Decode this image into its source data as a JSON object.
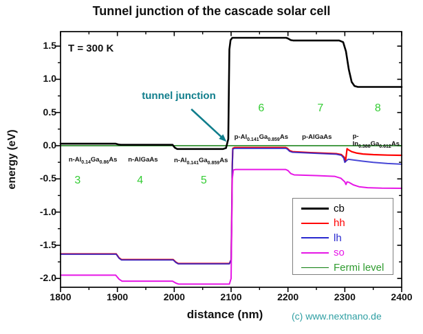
{
  "title": "Tunnel junction of the cascade solar cell",
  "temperature_label": "T = 300 K",
  "watermark": "(c) www.nextnano.de",
  "colors": {
    "teal": "#107e8c",
    "watermark_teal": "#2f9fa3",
    "region_green": "#33cc33",
    "frame": "#000000"
  },
  "axes": {
    "xlabel": "distance (nm)",
    "ylabel": "energy (eV)",
    "xticks": [
      1800,
      1900,
      2000,
      2100,
      2200,
      2300,
      2400
    ],
    "xminor": [
      1850,
      1950,
      2050,
      2150,
      2250,
      2350
    ],
    "yticks": [
      {
        "v": 1.5,
        "label": "1.5"
      },
      {
        "v": 1.0,
        "label": "1.0"
      },
      {
        "v": 0.5,
        "label": "0.5"
      },
      {
        "v": 0.0,
        "label": "0.0"
      },
      {
        "v": -0.5,
        "label": "-0.5"
      },
      {
        "v": -1.0,
        "label": "-1.0"
      },
      {
        "v": -1.5,
        "label": "-1.5"
      },
      {
        "v": -2.0,
        "label": "-2.0"
      }
    ],
    "yminor": [
      1.25,
      0.75,
      0.25,
      -0.25,
      -0.75,
      -1.25,
      -1.75
    ]
  },
  "annotations": {
    "tunnel_junction": {
      "text": "tunnel junction",
      "arrow": {
        "from_nm": 2030,
        "from_ev": 0.55,
        "to_nm": 2092,
        "to_ev": 0.06
      }
    },
    "regions": [
      {
        "label": "3",
        "x_nm": 1830,
        "y_ev": -0.57
      },
      {
        "label": "4",
        "x_nm": 1940,
        "y_ev": -0.57
      },
      {
        "label": "5",
        "x_nm": 2052,
        "y_ev": -0.57
      },
      {
        "label": "6",
        "x_nm": 2153,
        "y_ev": 0.52
      },
      {
        "label": "7",
        "x_nm": 2257,
        "y_ev": 0.52
      },
      {
        "label": "8",
        "x_nm": 2358,
        "y_ev": 0.52
      }
    ],
    "materials": [
      {
        "x_nm": 1857,
        "y_ev": -0.25,
        "parts": [
          {
            "t": "n-Al"
          },
          {
            "s": "0.14"
          },
          {
            "t": "Ga"
          },
          {
            "s": "0.86"
          },
          {
            "t": "As"
          }
        ]
      },
      {
        "x_nm": 1945,
        "y_ev": -0.25,
        "parts": [
          {
            "t": "n-AlGaAs"
          }
        ]
      },
      {
        "x_nm": 2047,
        "y_ev": -0.26,
        "parts": [
          {
            "t": "n-Al"
          },
          {
            "s": "0.141"
          },
          {
            "t": "Ga"
          },
          {
            "s": "0.859"
          },
          {
            "t": "As"
          }
        ]
      },
      {
        "x_nm": 2153,
        "y_ev": 0.09,
        "parts": [
          {
            "t": "p-Al"
          },
          {
            "s": "0.141"
          },
          {
            "t": "Ga"
          },
          {
            "s": "0.859"
          },
          {
            "t": "As"
          }
        ]
      },
      {
        "x_nm": 2251,
        "y_ev": 0.09,
        "parts": [
          {
            "t": "p-AlGaAs"
          }
        ]
      },
      {
        "x_nm": 2355,
        "y_ev": 0.1,
        "parts": [
          {
            "t": "p-In"
          },
          {
            "s": "0.388"
          },
          {
            "t": "Ga"
          },
          {
            "s": "0.612"
          },
          {
            "t": "As"
          }
        ]
      }
    ]
  },
  "legend": {
    "entries": [
      {
        "label": "cb",
        "color": "#000000",
        "label_color": "#000000",
        "line_width": 3
      },
      {
        "label": "hh",
        "color": "#ff0000",
        "label_color": "#ff0000",
        "line_width": 2.5
      },
      {
        "label": "lh",
        "color": "#2727cf",
        "label_color": "#2727cf",
        "line_width": 2
      },
      {
        "label": "so",
        "color": "#e616e6",
        "label_color": "#e616e6",
        "line_width": 2
      },
      {
        "label": "Fermi level",
        "color": "#0b7b0b",
        "label_color": "#2e9b2e",
        "line_width": 1.8
      }
    ]
  },
  "chart_data": {
    "type": "line",
    "title": "Tunnel junction of the cascade solar cell",
    "xlabel": "distance (nm)",
    "ylabel": "energy (eV)",
    "xlim": [
      1800,
      2400
    ],
    "ylim": [
      -2.13,
      1.72
    ],
    "grid": false,
    "legend_position": "lower-right-inside",
    "series": [
      {
        "name": "cb",
        "color": "#000000",
        "width": 2.6,
        "opacity": 1,
        "points": [
          [
            1800,
            0.03
          ],
          [
            1897,
            0.03
          ],
          [
            1902,
            0.018
          ],
          [
            1906,
            0.013
          ],
          [
            1997,
            0.013
          ],
          [
            2001,
            -0.03
          ],
          [
            2005,
            -0.05
          ],
          [
            2086,
            -0.05
          ],
          [
            2091,
            -0.035
          ],
          [
            2095,
            0.1
          ],
          [
            2096,
            0.8
          ],
          [
            2097,
            1.45
          ],
          [
            2099,
            1.59
          ],
          [
            2102,
            1.625
          ],
          [
            2197,
            1.625
          ],
          [
            2200,
            1.615
          ],
          [
            2205,
            1.59
          ],
          [
            2209,
            1.585
          ],
          [
            2290,
            1.585
          ],
          [
            2297,
            1.56
          ],
          [
            2302,
            1.42
          ],
          [
            2307,
            1.15
          ],
          [
            2312,
            0.96
          ],
          [
            2317,
            0.9
          ],
          [
            2323,
            0.885
          ],
          [
            2400,
            0.885
          ]
        ]
      },
      {
        "name": "hh",
        "color": "#ff0000",
        "width": 2.2,
        "opacity": 1,
        "points": [
          [
            1800,
            -1.63
          ],
          [
            1898,
            -1.63
          ],
          [
            1903,
            -1.69
          ],
          [
            1907,
            -1.715
          ],
          [
            1998,
            -1.715
          ],
          [
            2003,
            -1.755
          ],
          [
            2007,
            -1.775
          ],
          [
            2097,
            -1.775
          ],
          [
            2100,
            -1.72
          ],
          [
            2101,
            -1.2
          ],
          [
            2102,
            -0.3
          ],
          [
            2103,
            -0.04
          ],
          [
            2106,
            -0.028
          ],
          [
            2196,
            -0.028
          ],
          [
            2199,
            -0.04
          ],
          [
            2203,
            -0.075
          ],
          [
            2208,
            -0.09
          ],
          [
            2240,
            -0.105
          ],
          [
            2285,
            -0.12
          ],
          [
            2294,
            -0.135
          ],
          [
            2299,
            -0.175
          ],
          [
            2301,
            -0.24
          ],
          [
            2303,
            -0.115
          ],
          [
            2304,
            -0.045
          ],
          [
            2306,
            -0.06
          ],
          [
            2312,
            -0.09
          ],
          [
            2320,
            -0.11
          ],
          [
            2332,
            -0.125
          ],
          [
            2350,
            -0.135
          ],
          [
            2375,
            -0.142
          ],
          [
            2400,
            -0.145
          ]
        ]
      },
      {
        "name": "lh",
        "color": "#2727cf",
        "width": 2.0,
        "opacity": 0.85,
        "points": [
          [
            1800,
            -1.635
          ],
          [
            1898,
            -1.635
          ],
          [
            1903,
            -1.695
          ],
          [
            1907,
            -1.72
          ],
          [
            1998,
            -1.72
          ],
          [
            2003,
            -1.76
          ],
          [
            2007,
            -1.78
          ],
          [
            2097,
            -1.78
          ],
          [
            2100,
            -1.72
          ],
          [
            2101,
            -1.2
          ],
          [
            2102,
            -0.32
          ],
          [
            2103,
            -0.05
          ],
          [
            2106,
            -0.04
          ],
          [
            2196,
            -0.04
          ],
          [
            2199,
            -0.052
          ],
          [
            2203,
            -0.085
          ],
          [
            2208,
            -0.098
          ],
          [
            2240,
            -0.112
          ],
          [
            2285,
            -0.128
          ],
          [
            2294,
            -0.145
          ],
          [
            2298,
            -0.185
          ],
          [
            2300,
            -0.25
          ],
          [
            2303,
            -0.225
          ],
          [
            2306,
            -0.205
          ],
          [
            2315,
            -0.215
          ],
          [
            2330,
            -0.232
          ],
          [
            2350,
            -0.252
          ],
          [
            2375,
            -0.268
          ],
          [
            2400,
            -0.278
          ]
        ]
      },
      {
        "name": "so",
        "color": "#e616e6",
        "width": 2.0,
        "opacity": 1,
        "points": [
          [
            1800,
            -1.95
          ],
          [
            1897,
            -1.95
          ],
          [
            1903,
            -2.01
          ],
          [
            1908,
            -2.04
          ],
          [
            1997,
            -2.04
          ],
          [
            2003,
            -2.07
          ],
          [
            2008,
            -2.085
          ],
          [
            2097,
            -2.085
          ],
          [
            2100,
            -2.0
          ],
          [
            2101,
            -1.3
          ],
          [
            2102,
            -0.5
          ],
          [
            2104,
            -0.365
          ],
          [
            2108,
            -0.358
          ],
          [
            2196,
            -0.358
          ],
          [
            2200,
            -0.375
          ],
          [
            2205,
            -0.42
          ],
          [
            2211,
            -0.44
          ],
          [
            2250,
            -0.45
          ],
          [
            2282,
            -0.462
          ],
          [
            2293,
            -0.49
          ],
          [
            2300,
            -0.545
          ],
          [
            2302,
            -0.585
          ],
          [
            2304,
            -0.545
          ],
          [
            2308,
            -0.555
          ],
          [
            2315,
            -0.59
          ],
          [
            2325,
            -0.618
          ],
          [
            2340,
            -0.632
          ],
          [
            2365,
            -0.64
          ],
          [
            2400,
            -0.642
          ]
        ]
      },
      {
        "name": "Fermi level",
        "color": "#0b7b0b",
        "width": 1.6,
        "opacity": 1,
        "points": [
          [
            1800,
            0
          ],
          [
            2400,
            0
          ]
        ]
      }
    ]
  }
}
